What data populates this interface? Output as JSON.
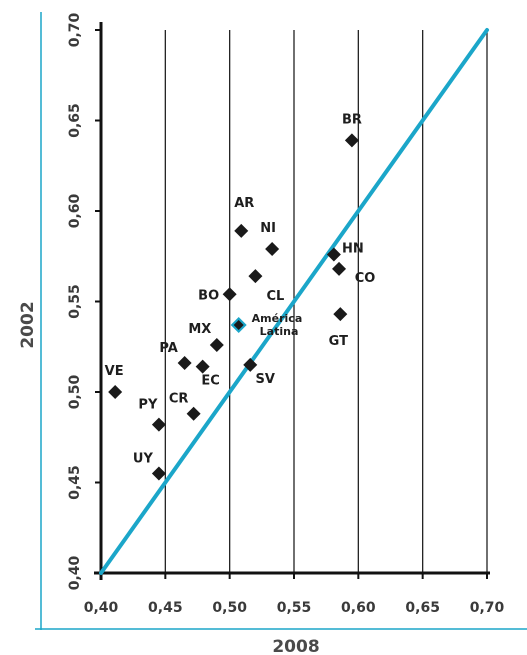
{
  "chart_data": {
    "type": "scatter",
    "xlabel": "2008",
    "ylabel": "2002",
    "xlim": [
      0.4,
      0.7
    ],
    "ylim": [
      0.4,
      0.7
    ],
    "x_ticks": [
      "0,40",
      "0,45",
      "0,50",
      "0,55",
      "0,60",
      "0,65",
      "0,70"
    ],
    "y_ticks": [
      "0,40",
      "0,45",
      "0,50",
      "0,55",
      "0,60",
      "0,65",
      "0,70"
    ],
    "grid": "vertical",
    "reference_line": {
      "from": [
        0.4,
        0.4
      ],
      "to": [
        0.7,
        0.7
      ],
      "color": "#1ba6c9"
    },
    "points": [
      {
        "label": "BR",
        "x": 0.595,
        "y": 0.639
      },
      {
        "label": "AR",
        "x": 0.509,
        "y": 0.589
      },
      {
        "label": "NI",
        "x": 0.533,
        "y": 0.579
      },
      {
        "label": "HN",
        "x": 0.581,
        "y": 0.576
      },
      {
        "label": "CO",
        "x": 0.585,
        "y": 0.568
      },
      {
        "label": "CL",
        "x": 0.52,
        "y": 0.564
      },
      {
        "label": "BO",
        "x": 0.5,
        "y": 0.554
      },
      {
        "label": "GT",
        "x": 0.586,
        "y": 0.543
      },
      {
        "label": "MX",
        "x": 0.49,
        "y": 0.526
      },
      {
        "label": "PA",
        "x": 0.465,
        "y": 0.516
      },
      {
        "label": "EC",
        "x": 0.479,
        "y": 0.514
      },
      {
        "label": "SV",
        "x": 0.516,
        "y": 0.515
      },
      {
        "label": "VE",
        "x": 0.411,
        "y": 0.5
      },
      {
        "label": "CR",
        "x": 0.472,
        "y": 0.488
      },
      {
        "label": "PY",
        "x": 0.445,
        "y": 0.482
      },
      {
        "label": "UY",
        "x": 0.445,
        "y": 0.455
      }
    ],
    "highlight": {
      "label_line1": "América",
      "label_line2": "Latina",
      "x": 0.507,
      "y": 0.537,
      "color": "#1ba6c9"
    }
  }
}
